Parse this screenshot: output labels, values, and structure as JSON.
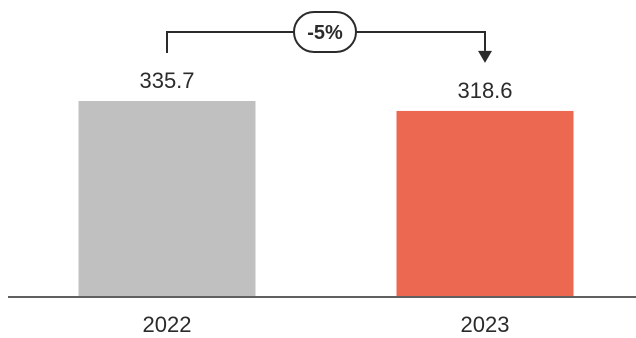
{
  "chart_data": {
    "type": "bar",
    "title": "",
    "xlabel": "",
    "ylabel": "",
    "categories": [
      "2022",
      "2023"
    ],
    "values": [
      335.7,
      318.6
    ],
    "value_labels": [
      "335.7",
      "318.6"
    ],
    "colors": [
      "#c0c0c0",
      "#ec6851"
    ],
    "ylim": [
      0,
      335.7
    ],
    "grid": false,
    "annotation": {
      "text": "-5%",
      "from": "2022",
      "to": "2023"
    }
  }
}
